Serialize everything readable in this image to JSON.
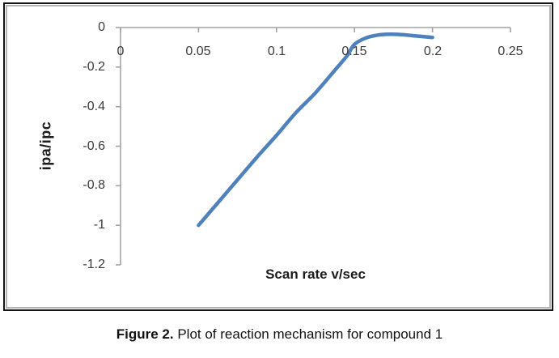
{
  "caption": {
    "prefix": "Figure 2.",
    "text": " Plot of reaction mechanism for compound 1"
  },
  "chart_data": {
    "type": "line",
    "title": "",
    "xlabel": "Scan rate v/sec",
    "ylabel": "ipa/ipc",
    "xlim": [
      0,
      0.25
    ],
    "ylim": [
      -1.2,
      0
    ],
    "x_ticks": [
      "0",
      "0.05",
      "0.1",
      "0.15",
      "0.2",
      "0.25"
    ],
    "y_ticks": [
      "0",
      "-0.2",
      "-0.4",
      "-0.6",
      "-0.8",
      "-1",
      "-1.2"
    ],
    "grid": false,
    "legend": "none",
    "line_color": "#4F81BD",
    "axis_color": "#a3a3a3",
    "series": [
      {
        "x": [
          0.05,
          0.1,
          0.15,
          0.2
        ],
        "y": [
          -1.0,
          -0.55,
          -0.09,
          -0.05
        ]
      }
    ],
    "curve_points": [
      [
        0.05,
        -1.0
      ],
      [
        0.0625,
        -0.885
      ],
      [
        0.075,
        -0.77
      ],
      [
        0.0875,
        -0.655
      ],
      [
        0.1,
        -0.545
      ],
      [
        0.1125,
        -0.43
      ],
      [
        0.125,
        -0.33
      ],
      [
        0.1375,
        -0.215
      ],
      [
        0.145,
        -0.145
      ],
      [
        0.15,
        -0.085
      ],
      [
        0.1575,
        -0.052
      ],
      [
        0.165,
        -0.038
      ],
      [
        0.1725,
        -0.034
      ],
      [
        0.18,
        -0.036
      ],
      [
        0.19,
        -0.043
      ],
      [
        0.2,
        -0.05
      ]
    ]
  }
}
